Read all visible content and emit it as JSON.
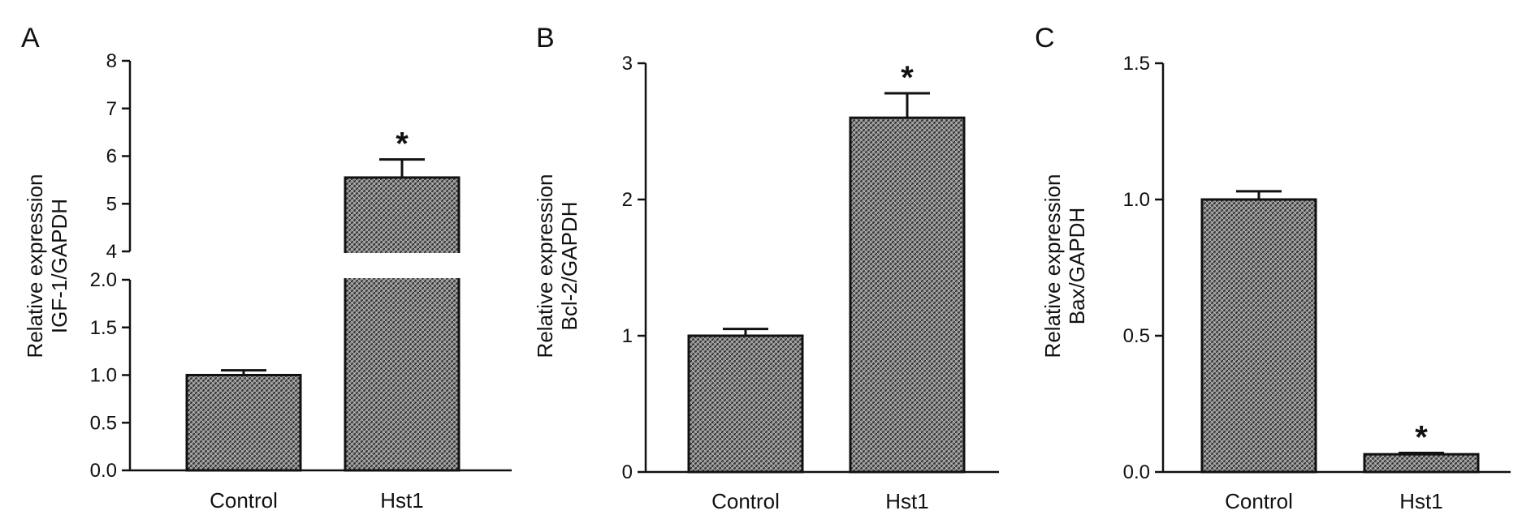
{
  "chart_data": [
    {
      "panel": "A",
      "type": "bar",
      "categories": [
        "Control",
        "Hst1"
      ],
      "values": [
        1.0,
        5.55
      ],
      "errors": [
        0.05,
        0.38
      ],
      "significance": [
        "",
        "*"
      ],
      "ylabel_lines": [
        "Relative expression",
        "IGF-1/GAPDH"
      ],
      "broken_axis": true,
      "lower_segment": {
        "ylim": [
          0,
          2.0
        ],
        "ticks": [
          "0.0",
          "0.5",
          "1.0",
          "1.5",
          "2.0"
        ]
      },
      "upper_segment": {
        "ylim": [
          4,
          8
        ],
        "ticks": [
          "4",
          "5",
          "6",
          "7",
          "8"
        ]
      }
    },
    {
      "panel": "B",
      "type": "bar",
      "categories": [
        "Control",
        "Hst1"
      ],
      "values": [
        1.0,
        2.6
      ],
      "errors": [
        0.05,
        0.18
      ],
      "significance": [
        "",
        "*"
      ],
      "ylabel_lines": [
        "Relative expression",
        "Bcl-2/GAPDH"
      ],
      "ylim": [
        0,
        3
      ],
      "ticks": [
        "0",
        "1",
        "2",
        "3"
      ]
    },
    {
      "panel": "C",
      "type": "bar",
      "categories": [
        "Control",
        "Hst1"
      ],
      "values": [
        1.0,
        0.065
      ],
      "errors": [
        0.03,
        0.005
      ],
      "significance": [
        "",
        "*"
      ],
      "ylabel_lines": [
        "Relative expression",
        "Bax/GAPDH"
      ],
      "ylim": [
        0,
        1.5
      ],
      "ticks": [
        "0.0",
        "0.5",
        "1.0",
        "1.5"
      ]
    }
  ]
}
